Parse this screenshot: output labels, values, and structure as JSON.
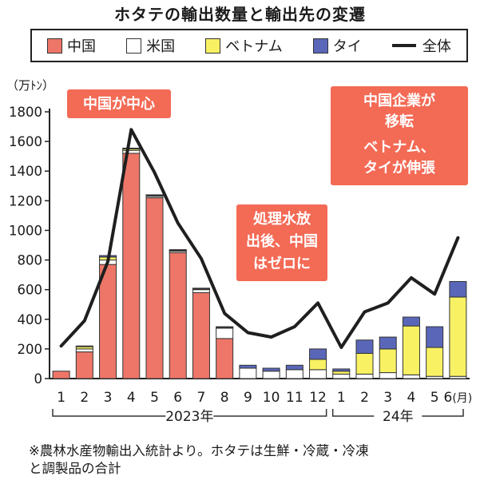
{
  "title": "ホタテの輸出数量と輸出先の変遷",
  "legend": {
    "china": "中国",
    "usa": "米国",
    "vietnam": "ベトナム",
    "thailand": "タイ",
    "total": "全体"
  },
  "colors": {
    "china": "#ee7668",
    "usa": "#ffffff",
    "vietnam": "#f8f163",
    "thailand": "#5a67b9",
    "total": "#1f1f1f",
    "callout_bg": "#f36a55"
  },
  "annotations": {
    "china_center": "中国が中心",
    "zero": [
      "処理水放",
      "出後、中国",
      "はゼロに"
    ],
    "move": [
      "中国企業が",
      "移転",
      "ベトナム、",
      "タイが伸張"
    ]
  },
  "note": {
    "line1": "※農林水産物輸出入統計より。ホタテは生鮮・冷蔵・冷凍",
    "line2": "と調製品の合計"
  },
  "chart_data": {
    "type": "bar",
    "unit": "（万ﾄﾝ）",
    "y_ticks": [
      "0",
      "200",
      "400",
      "600",
      "800",
      "1000",
      "1200",
      "1400",
      "1600",
      "1800"
    ],
    "ylim": [
      0,
      1800
    ],
    "categories": [
      "1",
      "2",
      "3",
      "4",
      "5",
      "6",
      "7",
      "8",
      "9",
      "10",
      "11",
      "12",
      "1",
      "2",
      "3",
      "4",
      "5",
      "6"
    ],
    "last_label_suffix": "(月)",
    "year_groups": [
      {
        "label": "2023年",
        "from": 0,
        "to": 11
      },
      {
        "label": "24年",
        "from": 12,
        "to": 17
      }
    ],
    "series": [
      {
        "name": "中国",
        "key": "china",
        "values": [
          50,
          180,
          770,
          1520,
          1220,
          850,
          580,
          270,
          0,
          0,
          0,
          0,
          0,
          0,
          0,
          0,
          0,
          0
        ]
      },
      {
        "name": "米国",
        "key": "usa",
        "values": [
          0,
          20,
          30,
          20,
          10,
          10,
          20,
          70,
          70,
          50,
          60,
          60,
          30,
          30,
          40,
          25,
          15,
          15
        ]
      },
      {
        "name": "ベトナム",
        "key": "vietnam",
        "values": [
          0,
          15,
          20,
          10,
          5,
          5,
          5,
          5,
          0,
          0,
          0,
          70,
          20,
          140,
          160,
          330,
          195,
          535
        ]
      },
      {
        "name": "タイ",
        "key": "thailand",
        "values": [
          0,
          5,
          10,
          5,
          5,
          5,
          5,
          5,
          20,
          20,
          30,
          70,
          15,
          90,
          80,
          60,
          140,
          105
        ]
      }
    ],
    "total": {
      "name": "全体",
      "values": [
        220,
        390,
        790,
        1680,
        1390,
        1050,
        810,
        440,
        310,
        280,
        350,
        510,
        210,
        450,
        510,
        680,
        570,
        950
      ]
    }
  }
}
